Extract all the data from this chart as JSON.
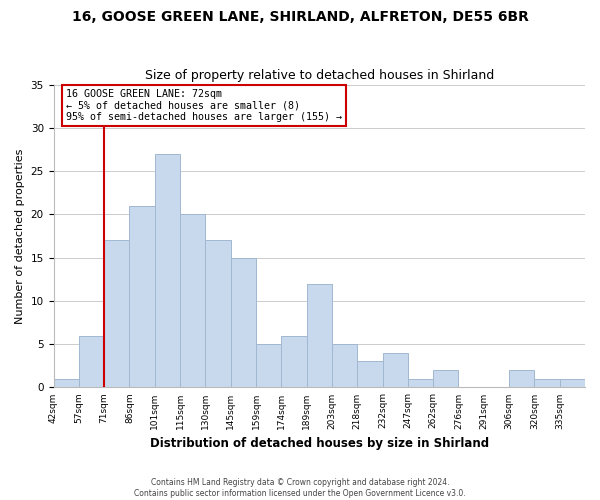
{
  "title": "16, GOOSE GREEN LANE, SHIRLAND, ALFRETON, DE55 6BR",
  "subtitle": "Size of property relative to detached houses in Shirland",
  "xlabel": "Distribution of detached houses by size in Shirland",
  "ylabel": "Number of detached properties",
  "bar_color": "#c8d9ed",
  "bar_edge_color": "#a0b8d0",
  "bin_labels": [
    "42sqm",
    "57sqm",
    "71sqm",
    "86sqm",
    "101sqm",
    "115sqm",
    "130sqm",
    "145sqm",
    "159sqm",
    "174sqm",
    "189sqm",
    "203sqm",
    "218sqm",
    "232sqm",
    "247sqm",
    "262sqm",
    "276sqm",
    "291sqm",
    "306sqm",
    "320sqm",
    "335sqm"
  ],
  "bin_values": [
    1,
    6,
    17,
    21,
    27,
    20,
    17,
    15,
    5,
    6,
    12,
    5,
    3,
    4,
    1,
    2,
    0,
    0,
    2,
    1,
    1
  ],
  "property_line_x": 2,
  "property_line_label": "16 GOOSE GREEN LANE: 72sqm",
  "annotation_line1": "← 5% of detached houses are smaller (8)",
  "annotation_line2": "95% of semi-detached houses are larger (155) →",
  "footnote1": "Contains HM Land Registry data © Crown copyright and database right 2024.",
  "footnote2": "Contains public sector information licensed under the Open Government Licence v3.0.",
  "annotation_box_color": "#ffffff",
  "annotation_box_edge_color": "#cc0000",
  "property_line_color": "#cc0000",
  "ylim": [
    0,
    35
  ],
  "yticks": [
    0,
    5,
    10,
    15,
    20,
    25,
    30,
    35
  ],
  "background_color": "#ffffff",
  "grid_color": "#cccccc"
}
